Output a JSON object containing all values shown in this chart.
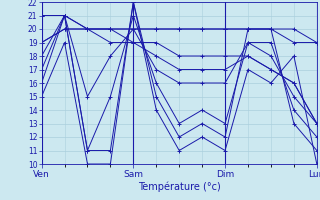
{
  "xlabel": "Température (°c)",
  "xlim": [
    0,
    72
  ],
  "ylim": [
    10,
    22
  ],
  "yticks": [
    10,
    11,
    12,
    13,
    14,
    15,
    16,
    17,
    18,
    19,
    20,
    21,
    22
  ],
  "day_ticks": [
    0,
    24,
    48,
    72
  ],
  "day_labels": [
    "Ven",
    "Sam",
    "Dim",
    "Lun"
  ],
  "background_color": "#cce8f0",
  "grid_color": "#aacfdd",
  "line_color": "#1a1aaa",
  "series": [
    [
      0,
      15,
      6,
      19,
      12,
      10,
      18,
      10,
      24,
      22,
      30,
      14,
      36,
      11,
      42,
      12,
      48,
      11,
      54,
      17,
      60,
      16,
      66,
      18,
      72,
      10
    ],
    [
      0,
      16,
      6,
      21,
      12,
      11,
      18,
      11,
      24,
      22,
      30,
      15,
      36,
      12,
      42,
      13,
      48,
      12,
      54,
      20,
      60,
      20,
      66,
      13,
      72,
      11
    ],
    [
      0,
      17,
      6,
      21,
      12,
      11,
      18,
      15,
      24,
      21,
      30,
      16,
      36,
      13,
      42,
      14,
      48,
      13,
      54,
      19,
      60,
      19,
      66,
      14,
      72,
      12
    ],
    [
      0,
      18,
      6,
      21,
      12,
      15,
      18,
      18,
      24,
      20,
      30,
      17,
      36,
      16,
      42,
      16,
      48,
      16,
      54,
      19,
      60,
      18,
      66,
      15,
      72,
      13
    ],
    [
      0,
      19,
      6,
      20,
      12,
      20,
      18,
      19,
      24,
      19,
      30,
      18,
      36,
      17,
      42,
      17,
      48,
      17,
      54,
      18,
      60,
      17,
      66,
      16,
      72,
      13
    ],
    [
      0,
      19,
      6,
      20,
      12,
      20,
      18,
      20,
      24,
      19,
      30,
      19,
      36,
      18,
      42,
      18,
      48,
      18,
      54,
      18,
      60,
      17,
      66,
      16,
      72,
      13
    ],
    [
      0,
      21,
      6,
      21,
      12,
      20,
      18,
      20,
      24,
      20,
      30,
      20,
      36,
      20,
      42,
      20,
      48,
      20,
      54,
      20,
      60,
      20,
      66,
      20,
      72,
      19
    ],
    [
      0,
      21,
      6,
      21,
      12,
      20,
      18,
      20,
      24,
      20,
      30,
      20,
      36,
      20,
      42,
      20,
      48,
      20,
      54,
      20,
      60,
      20,
      66,
      19,
      72,
      19
    ]
  ]
}
